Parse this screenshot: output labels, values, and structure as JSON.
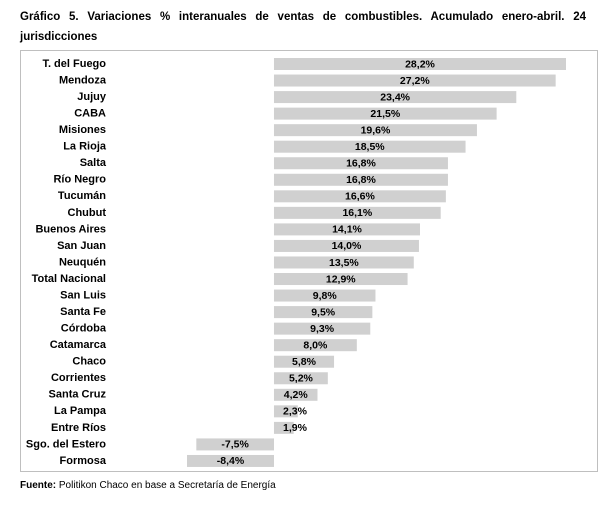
{
  "chart_data": {
    "type": "hbar",
    "title": "Gráfico 5. Variaciones % interanuales de ventas de combustibles. Acumulado enero-abril. 24 jurisdicciones",
    "categories": [
      "T. del Fuego",
      "Mendoza",
      "Jujuy",
      "CABA",
      "Misiones",
      "La Rioja",
      "Salta",
      "Río Negro",
      "Tucumán",
      "Chubut",
      "Buenos Aires",
      "San Juan",
      "Neuquén",
      "Total Nacional",
      "San Luis",
      "Santa Fe",
      "Córdoba",
      "Catamarca",
      "Chaco",
      "Corrientes",
      "Santa Cruz",
      "La Pampa",
      "Entre Ríos",
      "Sgo. del Estero",
      "Formosa"
    ],
    "values": [
      28.2,
      27.2,
      23.4,
      21.5,
      19.6,
      18.5,
      16.8,
      16.8,
      16.6,
      16.1,
      14.1,
      14.0,
      13.5,
      12.9,
      9.8,
      9.5,
      9.3,
      8.0,
      5.8,
      5.2,
      4.2,
      2.3,
      1.9,
      -7.5,
      -8.4
    ],
    "value_labels": [
      "28,2%",
      "27,2%",
      "23,4%",
      "21,5%",
      "19,6%",
      "18,5%",
      "16,8%",
      "16,8%",
      "16,6%",
      "16,1%",
      "14,1%",
      "14,0%",
      "13,5%",
      "12,9%",
      "9,8%",
      "9,5%",
      "9,3%",
      "8,0%",
      "5,8%",
      "5,2%",
      "4,2%",
      "2,3%",
      "1,9%",
      "-7,5%",
      "-8,4%"
    ],
    "color": "#d0d0d0",
    "source_label": "Fuente:",
    "source_text": "Politikon Chaco en base a Secretaría de Energía"
  }
}
